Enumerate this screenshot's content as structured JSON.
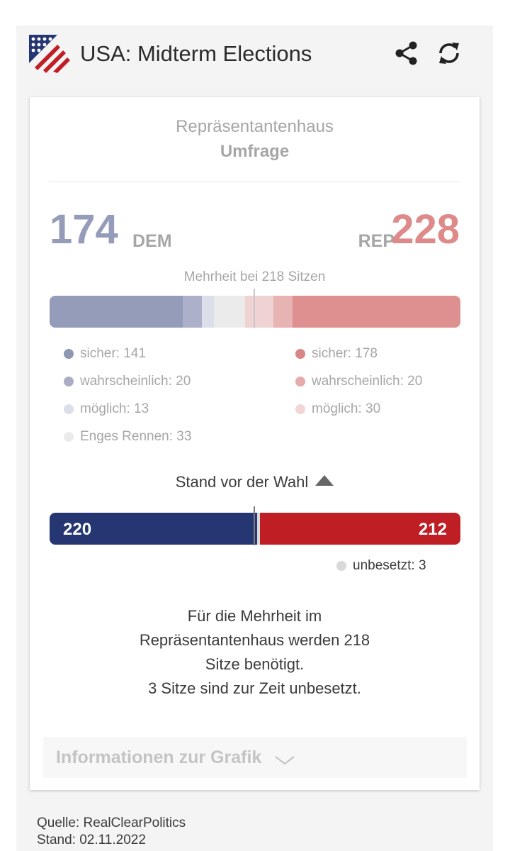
{
  "header": {
    "title": "USA: Midterm Elections",
    "logo_icon": "us-flag-logo-icon",
    "share_icon": "share-icon",
    "refresh_icon": "refresh-icon"
  },
  "card": {
    "chamber": "Repräsentantenhaus",
    "mode": "Umfrage",
    "dem": {
      "seats": "174",
      "label": "DEM"
    },
    "rep": {
      "seats": "228",
      "label": "REP"
    },
    "majority_text": "Mehrheit bei 218 Sitzen",
    "poll_bar": [
      {
        "party": "dem",
        "category": "sicher",
        "seats": 141,
        "color": "#959cb9"
      },
      {
        "party": "dem",
        "category": "wahrscheinlich",
        "seats": 20,
        "color": "#acb1c9"
      },
      {
        "party": "dem",
        "category": "möglich",
        "seats": 13,
        "color": "#dcdfe9"
      },
      {
        "party": "none",
        "category": "Enges Rennen",
        "seats": 33,
        "color": "#ebebeb"
      },
      {
        "party": "rep",
        "category": "möglich",
        "seats": 30,
        "color": "#efd3d3"
      },
      {
        "party": "rep",
        "category": "wahrscheinlich",
        "seats": 20,
        "color": "#e7b3b3"
      },
      {
        "party": "rep",
        "category": "sicher",
        "seats": 178,
        "color": "#de8f8f"
      }
    ],
    "legend_left": [
      {
        "text": "sicher: 141",
        "color": "#8f96b2"
      },
      {
        "text": "wahrscheinlich: 20",
        "color": "#a9aec4"
      },
      {
        "text": "möglich: 13",
        "color": "#dcdfe9"
      },
      {
        "text": "Enges Rennen: 33",
        "color": "#ebebeb"
      }
    ],
    "legend_right": [
      {
        "text": "sicher: 178",
        "color": "#d88686"
      },
      {
        "text": "wahrscheinlich: 20",
        "color": "#e5aaaa"
      },
      {
        "text": "möglich: 30",
        "color": "#f2d6d6"
      }
    ],
    "before_label": "Stand vor der Wahl",
    "seat_bar": [
      {
        "party": "dem",
        "seats": 220,
        "label": "220",
        "color": "#253672"
      },
      {
        "party": "vacant",
        "seats": 3,
        "label": "",
        "color": "#d9d9d9"
      },
      {
        "party": "rep",
        "seats": 212,
        "label": "212",
        "color": "#bf1e24"
      }
    ],
    "vacant": {
      "text": "unbesetzt: 3",
      "color": "#d9d9d9"
    },
    "note_lines": [
      "Für die Mehrheit im",
      "Repräsentantenhaus werden 218",
      "Sitze benötigt.",
      "3 Sitze sind zur Zeit unbesetzt."
    ],
    "info_label": "Informationen zur Grafik"
  },
  "footer": {
    "source": "Quelle: RealClearPolitics",
    "date": "Stand: 02.11.2022"
  }
}
